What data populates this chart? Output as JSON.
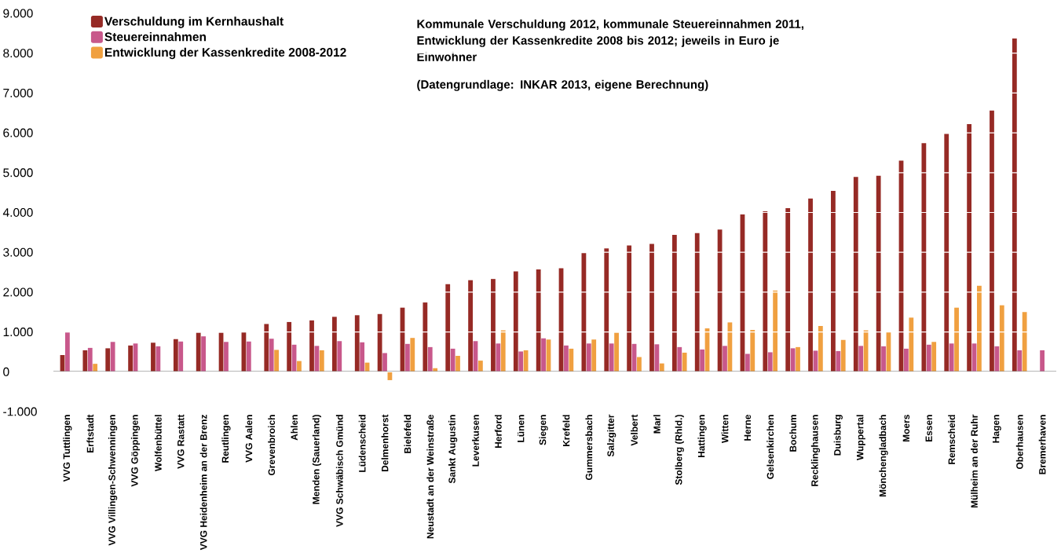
{
  "chart_data": {
    "type": "bar",
    "title": "Kommunale Verschuldung 2012, kommunale Steuereinnahmen 2011, Entwicklung der Kassenkredite 2008 bis 2012; jeweils in Euro je Einwohner",
    "annotations": [
      "(Datengrundlage: INKAR 2013, eigene Berechnung)"
    ],
    "categories": [
      "VVG Tuttlingen",
      "Erftstadt",
      "VVG Villingen-Schwenningen",
      "VVG Göppingen",
      "Wolfenbüttel",
      "VVG Rastatt",
      "VVG Heidenheim an der Brenz",
      "Reutlingen",
      "VVG Aalen",
      "Grevenbroich",
      "Ahlen",
      "Menden (Sauerland)",
      "VVG Schwäbisch Gmünd",
      "Lüdenscheid",
      "Delmenhorst",
      "Bielefeld",
      "Neustadt an der Weinstraße",
      "Sankt Augustin",
      "Leverkusen",
      "Herford",
      "Lünen",
      "Siegen",
      "Krefeld",
      "Gummersbach",
      "Salzgitter",
      "Velbert",
      "Marl",
      "Stolberg (Rhld.)",
      "Hattingen",
      "Witten",
      "Herne",
      "Gelsenkirchen",
      "Bochum",
      "Recklinghausen",
      "Duisburg",
      "Wuppertal",
      "Mönchengladbach",
      "Moers",
      "Essen",
      "Remscheid",
      "Mülheim an der Ruhr",
      "Hagen",
      "Oberhausen",
      "Bremerhaven"
    ],
    "series": [
      {
        "name": "Verschuldung im Kernhaushalt",
        "color": "#962a25",
        "values": [
          420,
          540,
          590,
          660,
          730,
          820,
          980,
          980,
          990,
          1200,
          1250,
          1290,
          1380,
          1420,
          1450,
          1610,
          1740,
          2200,
          2300,
          2330,
          2520,
          2570,
          2600,
          2980,
          3100,
          3170,
          3210,
          3440,
          3480,
          3570,
          3950,
          4030,
          4110,
          4350,
          4540,
          4890,
          4920,
          5300,
          5740,
          5970,
          6220,
          6560,
          8370,
          null
        ]
      },
      {
        "name": "Steuereinnahmen",
        "color": "#c8588b",
        "values": [
          990,
          600,
          750,
          710,
          640,
          760,
          890,
          750,
          760,
          830,
          680,
          650,
          770,
          740,
          470,
          700,
          620,
          580,
          770,
          710,
          510,
          840,
          660,
          710,
          710,
          700,
          690,
          620,
          560,
          650,
          450,
          490,
          590,
          530,
          520,
          650,
          640,
          580,
          680,
          710,
          710,
          640,
          540,
          540
        ]
      },
      {
        "name": "Entwicklung der Kassenkredite 2008-2012",
        "color": "#f0a040",
        "values": [
          null,
          200,
          null,
          null,
          null,
          null,
          null,
          null,
          null,
          550,
          270,
          540,
          null,
          230,
          -210,
          850,
          90,
          400,
          280,
          1040,
          540,
          810,
          580,
          810,
          980,
          370,
          210,
          480,
          1090,
          1240,
          1050,
          2040,
          620,
          1150,
          800,
          1040,
          1000,
          1360,
          750,
          1610,
          2160,
          1670,
          1500,
          null
        ]
      }
    ],
    "ylim": [
      -1000,
      9000
    ],
    "yticks": [
      {
        "value": -1000,
        "label": "-1.000"
      },
      {
        "value": 0,
        "label": "0"
      },
      {
        "value": 1000,
        "label": "1.000"
      },
      {
        "value": 2000,
        "label": "2.000"
      },
      {
        "value": 3000,
        "label": "3.000"
      },
      {
        "value": 4000,
        "label": "4.000"
      },
      {
        "value": 5000,
        "label": "5.000"
      },
      {
        "value": 6000,
        "label": "6.000"
      },
      {
        "value": 7000,
        "label": "7.000"
      },
      {
        "value": 8000,
        "label": "8.000"
      },
      {
        "value": 9000,
        "label": "9.000"
      }
    ],
    "grid": "y",
    "legend": "top left"
  }
}
